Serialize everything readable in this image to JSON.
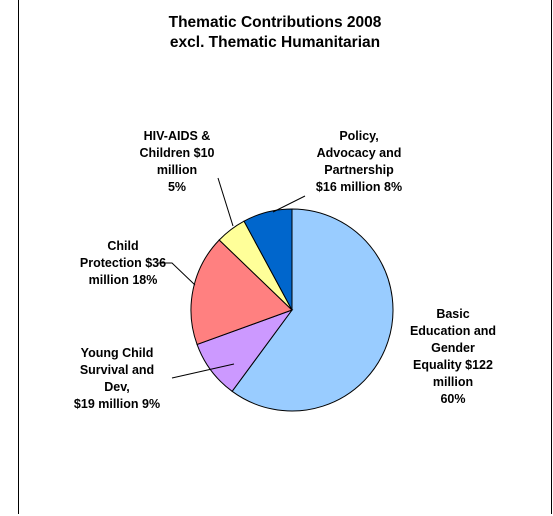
{
  "chart_data": {
    "type": "pie",
    "title_lines": [
      "Thematic Contributions 2008",
      "excl. Thematic Humanitarian"
    ],
    "legend": "none",
    "slices": [
      {
        "label_lines": [
          "Basic",
          "Education and",
          "Gender",
          "Equality $122",
          "million",
          "60%"
        ],
        "value": 122,
        "percent": 60,
        "color": "#99CCFF"
      },
      {
        "label_lines": [
          "Young Child",
          "Survival and",
          "Dev,",
          "$19 million 9%"
        ],
        "value": 19,
        "percent": 9,
        "color": "#CC99FF"
      },
      {
        "label_lines": [
          "Child",
          "Protection $36",
          "million 18%"
        ],
        "value": 36,
        "percent": 18,
        "color": "#FF8080"
      },
      {
        "label_lines": [
          "HIV-AIDS &",
          "Children $10",
          "million",
          "5%"
        ],
        "value": 10,
        "percent": 5,
        "color": "#FFFF99"
      },
      {
        "label_lines": [
          "Policy,",
          "Advocacy and",
          "Partnership",
          "$16 million 8%"
        ],
        "value": 16,
        "percent": 8,
        "color": "#0066CC"
      }
    ]
  }
}
